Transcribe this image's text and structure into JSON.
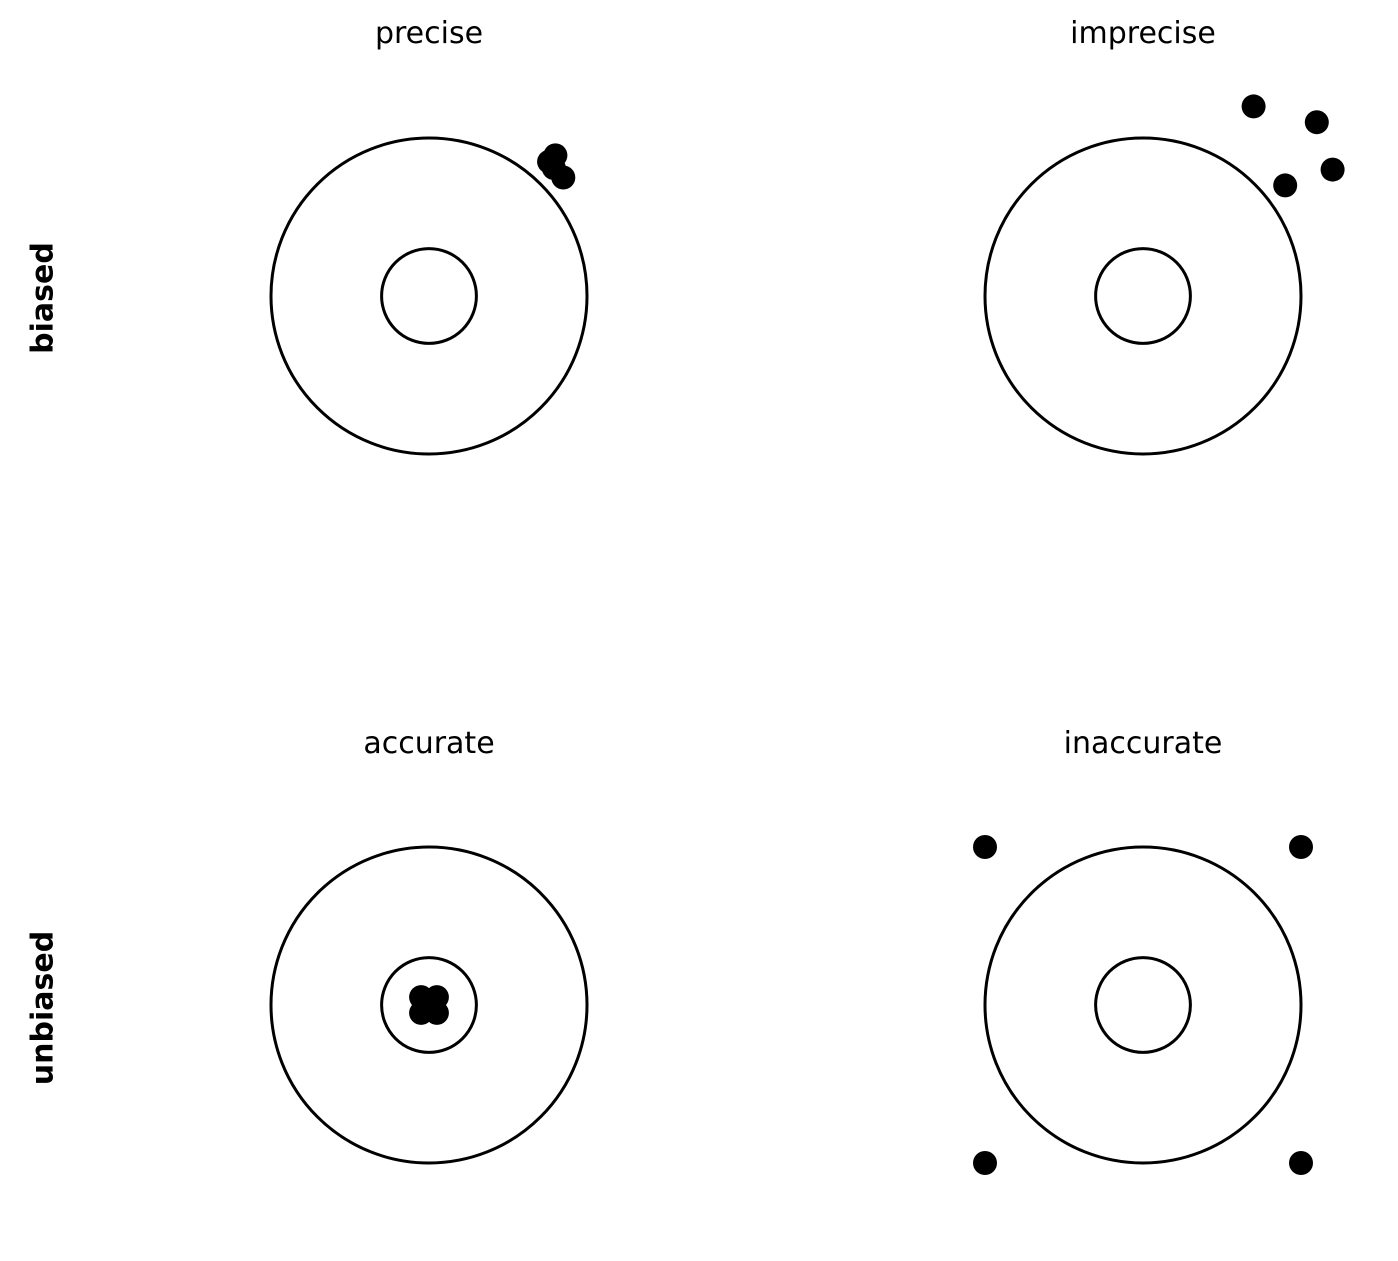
{
  "row_labels": [
    "biased",
    "unbiased"
  ],
  "colors": {
    "ink": "#000000",
    "background": "#ffffff"
  },
  "target": {
    "outer_radius": 1.0,
    "inner_radius": 0.3
  },
  "panels": [
    {
      "title": "precise",
      "shots": [
        [
          0.8,
          0.89
        ],
        [
          0.76,
          0.85
        ],
        [
          0.85,
          0.75
        ],
        [
          0.79,
          0.81
        ]
      ]
    },
    {
      "title": "imprecise",
      "shots": [
        [
          0.7,
          1.2
        ],
        [
          1.1,
          1.1
        ],
        [
          0.9,
          0.7
        ],
        [
          1.2,
          0.8
        ]
      ]
    },
    {
      "title": "accurate",
      "shots": [
        [
          -0.05,
          0.05
        ],
        [
          0.05,
          0.05
        ],
        [
          -0.05,
          -0.05
        ],
        [
          0.05,
          -0.05
        ]
      ]
    },
    {
      "title": "inaccurate",
      "shots": [
        [
          -1.0,
          1.0
        ],
        [
          1.0,
          1.0
        ],
        [
          -1.0,
          -1.0
        ],
        [
          1.0,
          -1.0
        ]
      ]
    }
  ]
}
